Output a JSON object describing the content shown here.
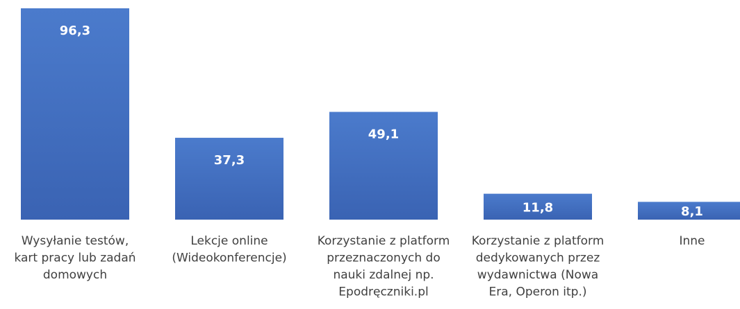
{
  "chart_data": {
    "type": "bar",
    "categories": [
      [
        "Wysyłanie testów,",
        "kart pracy lub zadań",
        "domowych"
      ],
      [
        "Lekcje online",
        "(Wideokonferencje)"
      ],
      [
        "Korzystanie z platform",
        "przeznaczonych do",
        "nauki zdalnej np.",
        "Epodręczniki.pl"
      ],
      [
        "Korzystanie z platform",
        "dedykowanych przez",
        "wydawnictwa (Nowa",
        "Era, Operon itp.)"
      ],
      [
        "Inne"
      ]
    ],
    "values": [
      96.3,
      37.3,
      49.1,
      11.8,
      8.1
    ],
    "value_labels": [
      "96,3",
      "37,3",
      "49,1",
      "11,8",
      "8,1"
    ],
    "color": "#4472c4"
  }
}
